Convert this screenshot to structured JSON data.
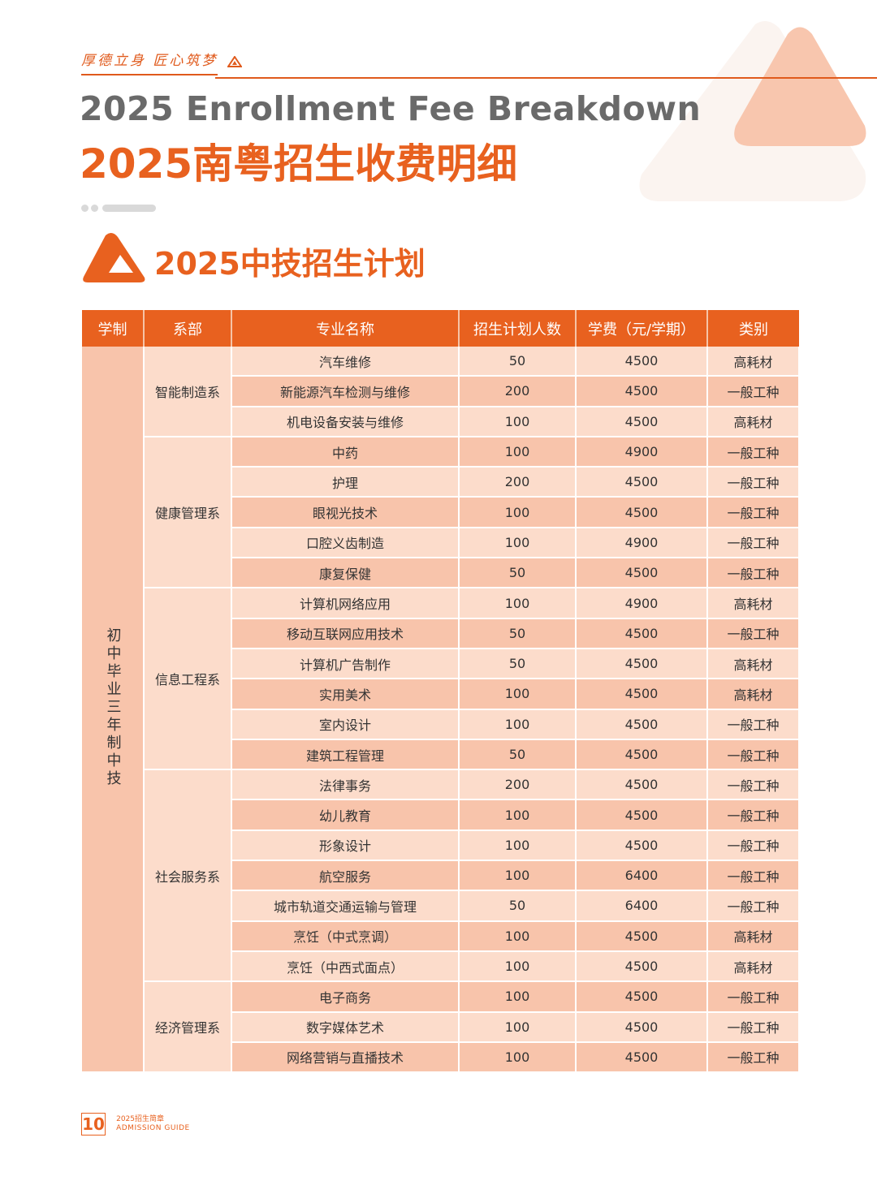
{
  "header": {
    "motto": "厚德立身 匠心筑梦",
    "title_en": "2025 Enrollment Fee Breakdown",
    "title_cn": "2025南粤招生收费明细"
  },
  "section": {
    "title": "2025中技招生计划"
  },
  "table": {
    "columns": [
      "学制",
      "系部",
      "专业名称",
      "招生计划人数",
      "学费（元/学期）",
      "类别"
    ],
    "xuezhi": "初中毕业三年制中技",
    "departments": [
      {
        "name": "智能制造系",
        "rows": [
          {
            "major": "汽车维修",
            "count": "50",
            "fee": "4500",
            "type": "高耗材"
          },
          {
            "major": "新能源汽车检测与维修",
            "count": "200",
            "fee": "4500",
            "type": "一般工种"
          },
          {
            "major": "机电设备安装与维修",
            "count": "100",
            "fee": "4500",
            "type": "高耗材"
          }
        ]
      },
      {
        "name": "健康管理系",
        "rows": [
          {
            "major": "中药",
            "count": "100",
            "fee": "4900",
            "type": "一般工种"
          },
          {
            "major": "护理",
            "count": "200",
            "fee": "4500",
            "type": "一般工种"
          },
          {
            "major": "眼视光技术",
            "count": "100",
            "fee": "4500",
            "type": "一般工种"
          },
          {
            "major": "口腔义齿制造",
            "count": "100",
            "fee": "4900",
            "type": "一般工种"
          },
          {
            "major": "康复保健",
            "count": "50",
            "fee": "4500",
            "type": "一般工种"
          }
        ]
      },
      {
        "name": "信息工程系",
        "rows": [
          {
            "major": "计算机网络应用",
            "count": "100",
            "fee": "4900",
            "type": "高耗材"
          },
          {
            "major": "移动互联网应用技术",
            "count": "50",
            "fee": "4500",
            "type": "一般工种"
          },
          {
            "major": "计算机广告制作",
            "count": "50",
            "fee": "4500",
            "type": "高耗材"
          },
          {
            "major": "实用美术",
            "count": "100",
            "fee": "4500",
            "type": "高耗材"
          },
          {
            "major": "室内设计",
            "count": "100",
            "fee": "4500",
            "type": "一般工种"
          },
          {
            "major": "建筑工程管理",
            "count": "50",
            "fee": "4500",
            "type": "一般工种"
          }
        ]
      },
      {
        "name": "社会服务系",
        "rows": [
          {
            "major": "法律事务",
            "count": "200",
            "fee": "4500",
            "type": "一般工种"
          },
          {
            "major": "幼儿教育",
            "count": "100",
            "fee": "4500",
            "type": "一般工种"
          },
          {
            "major": "形象设计",
            "count": "100",
            "fee": "4500",
            "type": "一般工种"
          },
          {
            "major": "航空服务",
            "count": "100",
            "fee": "6400",
            "type": "一般工种"
          },
          {
            "major": "城市轨道交通运输与管理",
            "count": "50",
            "fee": "6400",
            "type": "一般工种"
          },
          {
            "major": "烹饪（中式烹调）",
            "count": "100",
            "fee": "4500",
            "type": "高耗材"
          },
          {
            "major": "烹饪（中西式面点）",
            "count": "100",
            "fee": "4500",
            "type": "高耗材"
          }
        ]
      },
      {
        "name": "经济管理系",
        "rows": [
          {
            "major": "电子商务",
            "count": "100",
            "fee": "4500",
            "type": "一般工种"
          },
          {
            "major": "数字媒体艺术",
            "count": "100",
            "fee": "4500",
            "type": "一般工种"
          },
          {
            "major": "网络营销与直播技术",
            "count": "100",
            "fee": "4500",
            "type": "一般工种"
          }
        ]
      }
    ]
  },
  "footer": {
    "page_number": "10",
    "line1": "2025招生简章",
    "line2": "ADMISSION GUIDE"
  },
  "colors": {
    "accent": "#e8611f",
    "row_light": "#fcdccb",
    "row_dark": "#f8c4ab"
  }
}
